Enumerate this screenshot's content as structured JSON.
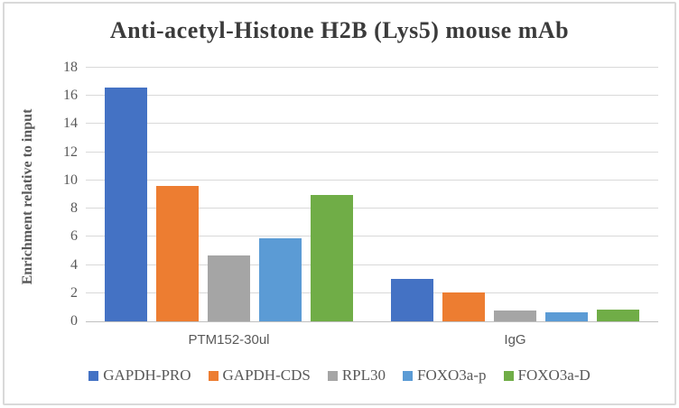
{
  "chart_data": {
    "type": "bar",
    "title": "Anti-acetyl-Histone H2B (Lys5) mouse mAb",
    "ylabel": "Enrichment  relative to input",
    "xlabel": "",
    "categories": [
      "PTM152-30ul",
      "IgG"
    ],
    "series": [
      {
        "name": "GAPDH-PRO",
        "color": "#4472C4",
        "values": [
          16.6,
          3.0
        ]
      },
      {
        "name": "GAPDH-CDS",
        "color": "#ED7D31",
        "values": [
          9.6,
          2.05
        ]
      },
      {
        "name": "RPL30",
        "color": "#A5A5A5",
        "values": [
          4.7,
          0.75
        ]
      },
      {
        "name": "FOXO3a-p",
        "color": "#5B9BD5",
        "values": [
          5.9,
          0.65
        ]
      },
      {
        "name": "FOXO3a-D",
        "color": "#70AD47",
        "values": [
          9.0,
          0.85
        ]
      }
    ],
    "ylim": [
      0,
      18
    ],
    "ytick_step": 2,
    "ytick_labels": [
      "0",
      "2",
      "4",
      "6",
      "8",
      "10",
      "12",
      "14",
      "16",
      "18"
    ],
    "grid": true,
    "legend_position": "bottom",
    "colors": {
      "gridline": "#D9D9D9",
      "axis_line": "#BFBFBF",
      "tick_text": "#595959",
      "title_text": "#3B3B3B",
      "frame_border": "#D9D9D9"
    }
  }
}
